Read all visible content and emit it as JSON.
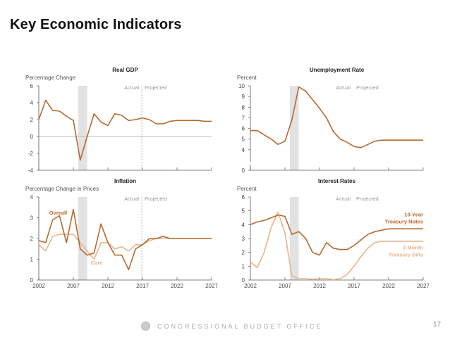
{
  "page": {
    "title": "Key Economic Indicators",
    "footer_org": "CONGRESSIONAL BUDGET OFFICE",
    "page_number": "17",
    "logo_icon": "cbo-seal-icon"
  },
  "colors": {
    "dark_series": "#b8692e",
    "light_series": "#e8b58a",
    "recession_shade": "#e2e2e2",
    "axis": "#555555",
    "actual_projected_divider": "#aaaaaa"
  },
  "chart_data": [
    {
      "id": "real-gdp",
      "type": "line",
      "title": "Real GDP",
      "ylabel": "Percentage Change",
      "ylim": [
        -4,
        6
      ],
      "yticks": [
        -4,
        -2,
        0,
        2,
        4,
        6
      ],
      "xlim": [
        2002,
        2027
      ],
      "xticks": [
        2002,
        2007,
        2012,
        2017,
        2022,
        2027
      ],
      "show_xtick_labels": false,
      "zero_line": true,
      "recession": [
        2007.7,
        2009.0
      ],
      "divider_year": 2016.9,
      "actual_label": "Actual",
      "projected_label": "Projected",
      "series": [
        {
          "name": "Real GDP",
          "color_key": "dark_series",
          "x": [
            2002,
            2003,
            2004,
            2005,
            2006,
            2007,
            2008,
            2009,
            2010,
            2011,
            2012,
            2013,
            2014,
            2015,
            2016,
            2017,
            2018,
            2019,
            2020,
            2021,
            2022,
            2023,
            2024,
            2025,
            2026,
            2027
          ],
          "values": [
            2.0,
            4.3,
            3.1,
            3.0,
            2.4,
            1.9,
            -2.8,
            0.0,
            2.7,
            1.7,
            1.3,
            2.7,
            2.5,
            1.9,
            2.0,
            2.2,
            2.0,
            1.5,
            1.5,
            1.8,
            1.9,
            1.9,
            1.9,
            1.9,
            1.8,
            1.8
          ]
        }
      ],
      "labels": []
    },
    {
      "id": "unemployment-rate",
      "type": "line",
      "title": "Unemployment Rate",
      "ylabel": "Percent",
      "ylim": [
        3,
        10
      ],
      "axis_break": true,
      "yticks": [
        0,
        4,
        5,
        6,
        7,
        8,
        9,
        10
      ],
      "xlim": [
        2002,
        2027
      ],
      "xticks": [
        2002,
        2007,
        2012,
        2017,
        2022,
        2027
      ],
      "show_xtick_labels": false,
      "recession": [
        2007.7,
        2009.0
      ],
      "divider_year": null,
      "actual_label": "Actual",
      "projected_label": "Projected",
      "series": [
        {
          "name": "Unemployment Rate",
          "color_key": "dark_series",
          "x": [
            2002,
            2003,
            2004,
            2005,
            2006,
            2007,
            2008,
            2009,
            2010,
            2011,
            2012,
            2013,
            2014,
            2015,
            2016,
            2017,
            2018,
            2019,
            2020,
            2021,
            2022,
            2023,
            2024,
            2025,
            2026,
            2027
          ],
          "values": [
            5.8,
            5.8,
            5.4,
            5.0,
            4.5,
            4.8,
            6.8,
            9.9,
            9.5,
            8.7,
            7.9,
            7.0,
            5.7,
            5.0,
            4.7,
            4.3,
            4.2,
            4.5,
            4.8,
            4.9,
            4.9,
            4.9,
            4.9,
            4.9,
            4.9,
            4.9
          ]
        }
      ],
      "labels": []
    },
    {
      "id": "inflation",
      "type": "line",
      "title": "Inflation",
      "ylabel": "Percentage Change in Prices",
      "ylim": [
        0,
        4
      ],
      "yticks": [
        0,
        1,
        2,
        3,
        4
      ],
      "xlim": [
        2002,
        2027
      ],
      "xticks": [
        2002,
        2007,
        2012,
        2017,
        2022,
        2027
      ],
      "xtick_labels": [
        "2002",
        "2007",
        "2012",
        "2017",
        "2022",
        "2027"
      ],
      "show_xtick_labels": true,
      "recession": [
        2007.7,
        2009.0
      ],
      "divider_year": 2016.9,
      "actual_label": "Actual",
      "projected_label": "Projected",
      "series": [
        {
          "name": "Core",
          "color_key": "light_series",
          "x": [
            2002,
            2003,
            2004,
            2005,
            2006,
            2007,
            2008,
            2009,
            2010,
            2011,
            2012,
            2013,
            2014,
            2015,
            2016,
            2017,
            2018,
            2019,
            2020,
            2021,
            2022,
            2023,
            2024,
            2025,
            2026,
            2027
          ],
          "values": [
            1.7,
            1.4,
            2.1,
            2.2,
            2.2,
            2.2,
            1.8,
            1.4,
            1.0,
            1.8,
            1.8,
            1.5,
            1.6,
            1.4,
            1.7,
            1.7,
            1.9,
            2.0,
            2.0,
            2.0,
            2.0,
            2.0,
            2.0,
            2.0,
            2.0,
            2.0
          ]
        },
        {
          "name": "Overall",
          "color_key": "dark_series",
          "x": [
            2002,
            2003,
            2004,
            2005,
            2006,
            2007,
            2008,
            2009,
            2010,
            2011,
            2012,
            2013,
            2014,
            2015,
            2016,
            2017,
            2018,
            2019,
            2020,
            2021,
            2022,
            2023,
            2024,
            2025,
            2026,
            2027
          ],
          "values": [
            1.9,
            1.8,
            2.9,
            3.1,
            1.8,
            3.4,
            1.5,
            1.2,
            1.3,
            2.7,
            1.8,
            1.2,
            1.2,
            0.5,
            1.5,
            1.7,
            2.0,
            2.0,
            2.1,
            2.0,
            2.0,
            2.0,
            2.0,
            2.0,
            2.0,
            2.0
          ]
        }
      ],
      "labels": [
        {
          "text": "Overall",
          "series": "Overall",
          "x": 2003.5,
          "y": 3.15
        },
        {
          "text": "Core",
          "series": "Core",
          "x": 2009.5,
          "y": 0.75
        }
      ]
    },
    {
      "id": "interest-rates",
      "type": "line",
      "title": "Interest Rates",
      "ylabel": "Percent",
      "ylim": [
        0,
        6
      ],
      "yticks": [
        0,
        1,
        2,
        3,
        4,
        5,
        6
      ],
      "xlim": [
        2002,
        2027
      ],
      "xticks": [
        2002,
        2007,
        2012,
        2017,
        2022,
        2027
      ],
      "xtick_labels": [
        "2002",
        "2007",
        "2012",
        "2017",
        "2022",
        "2027"
      ],
      "show_xtick_labels": true,
      "recession": [
        2007.7,
        2009.0
      ],
      "divider_year": null,
      "actual_label": "Actual",
      "projected_label": "Projected",
      "series": [
        {
          "name": "3-Month Treasury Bills",
          "color_key": "light_series",
          "x": [
            2002,
            2003,
            2004,
            2005,
            2006,
            2007,
            2008,
            2009,
            2010,
            2011,
            2012,
            2013,
            2014,
            2015,
            2016,
            2017,
            2018,
            2019,
            2020,
            2021,
            2022,
            2023,
            2024,
            2025,
            2026,
            2027
          ],
          "values": [
            1.3,
            0.9,
            2.0,
            3.8,
            4.9,
            3.4,
            0.3,
            0.1,
            0.1,
            0.05,
            0.1,
            0.1,
            0.03,
            0.1,
            0.4,
            1.0,
            1.7,
            2.3,
            2.7,
            2.8,
            2.8,
            2.8,
            2.8,
            2.8,
            2.8,
            2.8
          ]
        },
        {
          "name": "10-Year Treasury Notes",
          "color_key": "dark_series",
          "x": [
            2002,
            2003,
            2004,
            2005,
            2006,
            2007,
            2008,
            2009,
            2010,
            2011,
            2012,
            2013,
            2014,
            2015,
            2016,
            2017,
            2018,
            2019,
            2020,
            2021,
            2022,
            2023,
            2024,
            2025,
            2026,
            2027
          ],
          "values": [
            4.0,
            4.2,
            4.3,
            4.5,
            4.7,
            4.6,
            3.3,
            3.5,
            3.0,
            2.0,
            1.8,
            2.7,
            2.3,
            2.2,
            2.2,
            2.5,
            2.9,
            3.3,
            3.5,
            3.6,
            3.7,
            3.7,
            3.7,
            3.7,
            3.7,
            3.7
          ]
        }
      ],
      "labels": [
        {
          "text": "10-Year",
          "series": "10-Year Treasury Notes",
          "line2": "Treasury Notes",
          "x": 2027,
          "y": 4.6,
          "anchor": "end"
        },
        {
          "text": "3-Month",
          "series": "3-Month Treasury Bills",
          "line2": "Treasury Bills",
          "x": 2027,
          "y": 2.2,
          "anchor": "end"
        }
      ]
    }
  ]
}
